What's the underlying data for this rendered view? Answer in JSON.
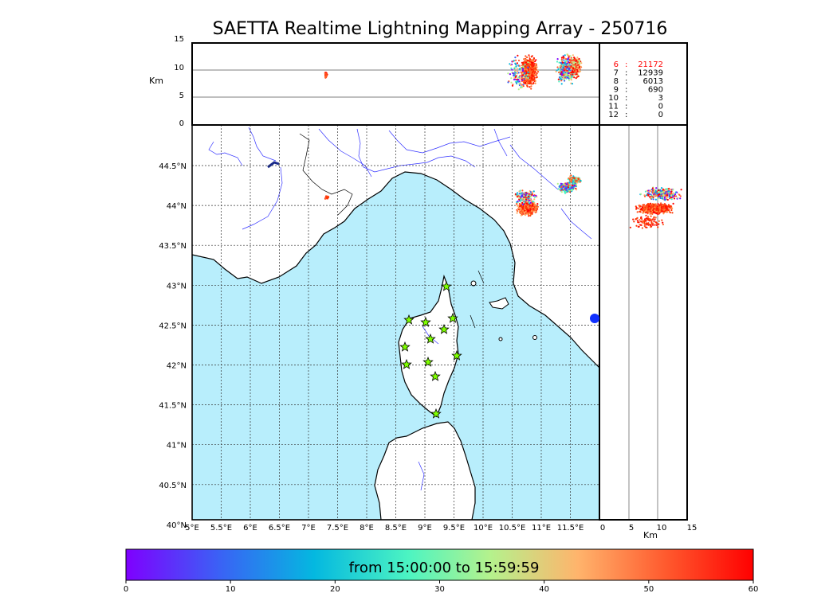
{
  "title": "SAETTA Realtime Lightning Mapping Array - 250716",
  "altitude": {
    "unit_label": "Km",
    "left_ticks": [
      "15",
      "10",
      "5",
      "0"
    ],
    "bottom_ticks": [
      "0",
      "5",
      "10",
      "15"
    ],
    "bottom_unit_label": "Km"
  },
  "map": {
    "lon_ticks": [
      "5°E",
      "5.5°E",
      "6°E",
      "6.5°E",
      "7°E",
      "7.5°E",
      "8°E",
      "8.5°E",
      "9°E",
      "9.5°E",
      "10°E",
      "10.5°E",
      "11°E",
      "11.5°E"
    ],
    "lat_ticks": [
      "44.5°N",
      "44°N",
      "43.5°N",
      "43°N",
      "42.5°N",
      "42°N",
      "41.5°N",
      "41°N",
      "40.5°N",
      "40°N"
    ],
    "stations": [
      "st1",
      "st2",
      "st3",
      "st4",
      "st5",
      "st6",
      "st7",
      "st8",
      "st9",
      "st10",
      "st11",
      "st12"
    ]
  },
  "station_counts": [
    {
      "stations": "6",
      "count": "21172",
      "color": "#ff0000"
    },
    {
      "stations": "7",
      "count": "12939",
      "color": "#000000"
    },
    {
      "stations": "8",
      "count": "6013",
      "color": "#000000"
    },
    {
      "stations": "9",
      "count": "690",
      "color": "#000000"
    },
    {
      "stations": "10",
      "count": "3",
      "color": "#000000"
    },
    {
      "stations": "11",
      "count": "0",
      "color": "#000000"
    },
    {
      "stations": "12",
      "count": "0",
      "color": "#000000"
    }
  ],
  "colorbar": {
    "label": "from 15:00:00 to 15:59:59",
    "ticks": [
      "0",
      "10",
      "20",
      "30",
      "40",
      "50",
      "60"
    ],
    "colors": [
      "#7f00ff",
      "#3a62f5",
      "#04b8e0",
      "#4cf4c2",
      "#b4f28d",
      "#ffb46c",
      "#ff5a2e",
      "#ff0000"
    ]
  },
  "colors": {
    "sea": "#b8eefc",
    "rivers": "#3333ff",
    "station_fill": "#7fff00"
  }
}
